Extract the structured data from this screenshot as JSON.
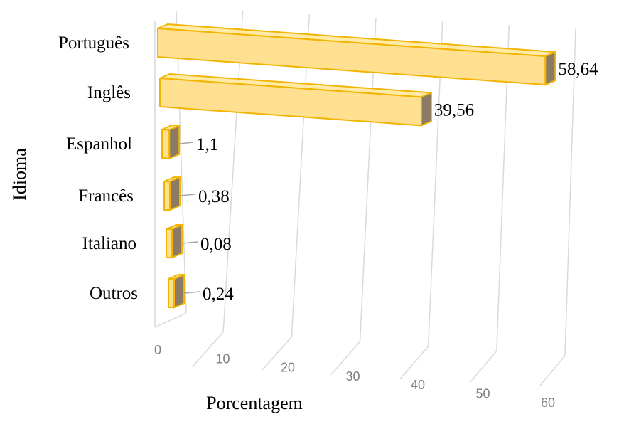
{
  "chart_data": {
    "type": "bar",
    "orientation": "horizontal",
    "title": "",
    "xlabel": "Porcentagem",
    "ylabel": "Idioma",
    "categories": [
      "Português",
      "Inglês",
      "Espanhol",
      "Francês",
      "Italiano",
      "Outros"
    ],
    "values": [
      58.64,
      39.56,
      1.1,
      0.38,
      0.08,
      0.24
    ],
    "value_labels": [
      "58,64",
      "39,56",
      "1,1",
      "0,38",
      "0,08",
      "0,24"
    ],
    "xticks": [
      "0",
      "10",
      "20",
      "30",
      "40",
      "50",
      "60"
    ],
    "xlim": [
      0,
      60
    ],
    "grid": true,
    "legend": "none",
    "colors": {
      "bar_front": "#ffe090",
      "bar_top": "#ffeaa8",
      "bar_end": "#8a7a66",
      "bar_edge": "#f2b400",
      "grid": "#d9d9d9",
      "tick_text": "#7f7f7f",
      "text": "#000000"
    }
  }
}
